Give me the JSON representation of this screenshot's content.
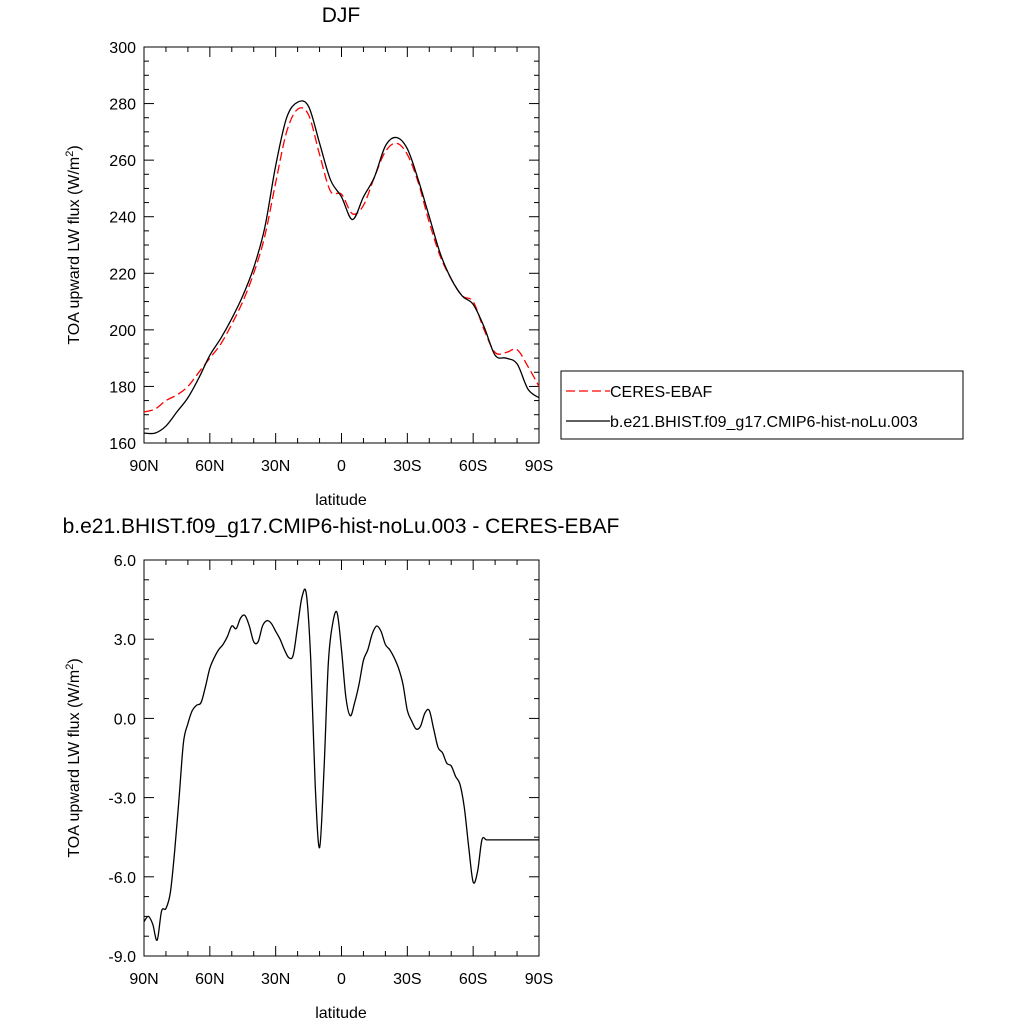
{
  "chart_data": [
    {
      "type": "line",
      "title": "DJF",
      "xlabel": "latitude",
      "ylabel": "TOA upward LW flux (W/m",
      "ylabel_sup": "2",
      "ylabel_close": ")",
      "xlim": [
        90,
        -90
      ],
      "ylim": [
        160,
        300
      ],
      "xticks": [
        90,
        60,
        30,
        0,
        -30,
        -60,
        -90
      ],
      "xtick_labels": [
        "90N",
        "60N",
        "30N",
        "0",
        "30S",
        "60S",
        "90S"
      ],
      "yticks": [
        160,
        180,
        200,
        220,
        240,
        260,
        280,
        300
      ],
      "ytick_labels": [
        "160",
        "180",
        "200",
        "220",
        "240",
        "260",
        "280",
        "300"
      ],
      "legend_position": "right",
      "series": [
        {
          "name": "CERES-EBAF",
          "color": "#ff0000",
          "dash": "dashed",
          "x": [
            90,
            85,
            80,
            75,
            70,
            65,
            60,
            55,
            50,
            45,
            40,
            35,
            30,
            25,
            20,
            15,
            10,
            5,
            0,
            -5,
            -10,
            -15,
            -20,
            -25,
            -30,
            -35,
            -40,
            -45,
            -50,
            -55,
            -60,
            -65,
            -70,
            -75,
            -80,
            -85,
            -90
          ],
          "y": [
            171,
            172,
            175,
            177,
            180,
            185,
            190,
            195,
            202,
            210,
            220,
            233,
            252,
            270,
            278,
            276,
            262,
            249,
            248,
            241,
            244,
            254,
            263,
            266,
            262,
            252,
            238,
            226,
            218,
            212,
            210,
            200,
            192,
            192,
            193,
            187,
            180
          ]
        },
        {
          "name": "b.e21.BHIST.f09_g17.CMIP6-hist-noLu.003",
          "color": "#000000",
          "dash": "solid",
          "x": [
            90,
            85,
            80,
            75,
            70,
            65,
            60,
            55,
            50,
            45,
            40,
            35,
            30,
            25,
            20,
            15,
            10,
            5,
            0,
            -5,
            -10,
            -15,
            -20,
            -25,
            -30,
            -35,
            -40,
            -45,
            -50,
            -55,
            -60,
            -65,
            -70,
            -75,
            -80,
            -85,
            -90
          ],
          "y": [
            163.5,
            163.5,
            166,
            171,
            176,
            183,
            191,
            197,
            204,
            212,
            222,
            236,
            258,
            275,
            280.5,
            279,
            266,
            253,
            247,
            239,
            247,
            254,
            265,
            268,
            264,
            253,
            240,
            227,
            218,
            212,
            209,
            201,
            191,
            190,
            188,
            179,
            176
          ]
        }
      ]
    },
    {
      "type": "line",
      "title": "b.e21.BHIST.f09_g17.CMIP6-hist-noLu.003 - CERES-EBAF",
      "xlabel": "latitude",
      "ylabel": "TOA upward LW flux (W/m",
      "ylabel_sup": "2",
      "ylabel_close": ")",
      "xlim": [
        90,
        -90
      ],
      "ylim": [
        -9,
        6
      ],
      "xticks": [
        90,
        60,
        30,
        0,
        -30,
        -60,
        -90
      ],
      "xtick_labels": [
        "90N",
        "60N",
        "30N",
        "0",
        "30S",
        "60S",
        "90S"
      ],
      "yticks": [
        -9,
        -6,
        -3,
        0,
        3,
        6
      ],
      "ytick_labels": [
        "-9.0",
        "-6.0",
        "-3.0",
        "0.0",
        "3.0",
        "6.0"
      ],
      "series": [
        {
          "name": "",
          "color": "#000000",
          "dash": "solid",
          "x": [
            90,
            88,
            86,
            84,
            82,
            80,
            78,
            76,
            74,
            72,
            70,
            68,
            66,
            64,
            62,
            60,
            58,
            56,
            54,
            52,
            50,
            48,
            46,
            44,
            42,
            40,
            38,
            36,
            34,
            32,
            30,
            28,
            26,
            24,
            22,
            20,
            18,
            16,
            14,
            12,
            10,
            8,
            6,
            4,
            2,
            0,
            -2,
            -4,
            -6,
            -8,
            -10,
            -12,
            -14,
            -16,
            -18,
            -20,
            -22,
            -24,
            -26,
            -28,
            -30,
            -32,
            -34,
            -36,
            -38,
            -40,
            -42,
            -44,
            -46,
            -48,
            -50,
            -52,
            -54,
            -56,
            -58,
            -60,
            -62,
            -64,
            -66,
            -68,
            -70,
            -72,
            -74,
            -76,
            -78,
            -80,
            -82,
            -84,
            -86,
            -88,
            -90
          ],
          "y": [
            -7.7,
            -7.5,
            -7.8,
            -8.4,
            -7.3,
            -7.2,
            -6.6,
            -5.0,
            -3.0,
            -0.9,
            -0.2,
            0.3,
            0.5,
            0.6,
            1.2,
            1.9,
            2.3,
            2.6,
            2.8,
            3.1,
            3.5,
            3.4,
            3.8,
            3.9,
            3.5,
            2.9,
            2.9,
            3.5,
            3.7,
            3.6,
            3.3,
            3.0,
            2.6,
            2.3,
            2.4,
            3.5,
            4.6,
            4.7,
            2.2,
            -2.5,
            -4.9,
            -2.0,
            2.1,
            3.6,
            4.0,
            2.6,
            0.8,
            0.1,
            0.6,
            1.3,
            2.2,
            2.6,
            3.2,
            3.5,
            3.3,
            2.8,
            2.6,
            2.3,
            1.9,
            1.3,
            0.3,
            -0.1,
            -0.4,
            -0.3,
            0.2,
            0.3,
            -0.4,
            -1.1,
            -1.3,
            -1.7,
            -1.8,
            -2.2,
            -2.5,
            -3.4,
            -4.9,
            -6.2,
            -5.8,
            -4.6,
            -4.6,
            -4.6,
            -4.6,
            -4.6,
            -4.6,
            -4.6,
            -4.6,
            -4.6,
            -4.6,
            -4.6,
            -4.6,
            -4.6,
            -4.6
          ]
        }
      ]
    }
  ]
}
